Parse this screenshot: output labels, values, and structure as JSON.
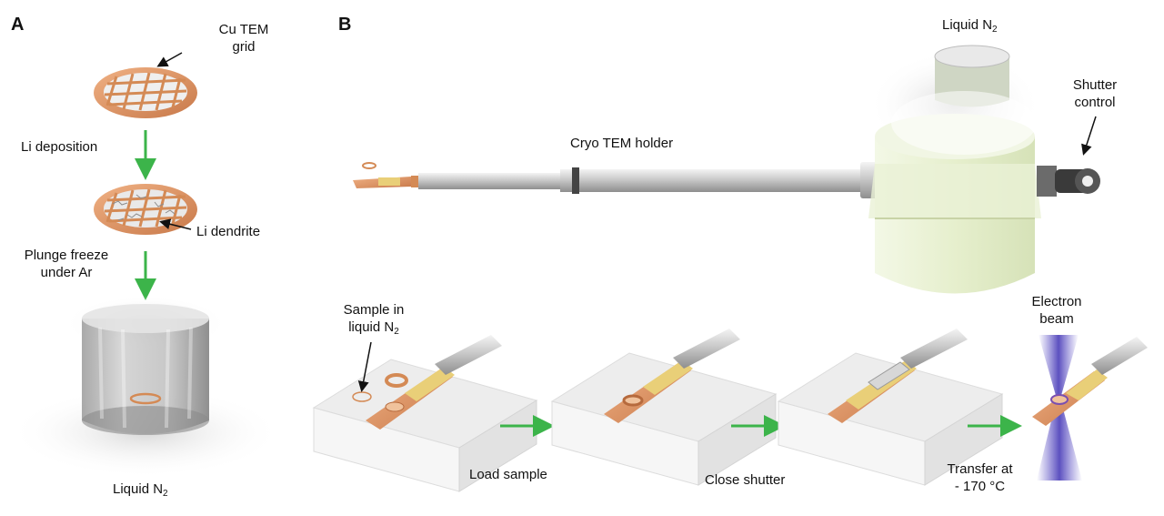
{
  "panels": {
    "a": "A",
    "b": "B"
  },
  "panel_a": {
    "grid_label_1": "Cu TEM",
    "grid_label_2": "grid",
    "step1": "Li deposition",
    "dendrite_label": "Li dendrite",
    "step2_line1": "Plunge freeze",
    "step2_line2": "under Ar",
    "dewar_label": "Liquid N",
    "dewar_label_sub": "2"
  },
  "panel_b": {
    "holder_label": "Cryo TEM holder",
    "liquid_label": "Liquid N",
    "liquid_label_sub": "2",
    "shutter_line1": "Shutter",
    "shutter_line2": "control",
    "sample_line1": "Sample in",
    "sample_line2": "liquid N",
    "sample_line2_sub": "2",
    "step_load": "Load sample",
    "step_close": "Close shutter",
    "step_transfer_line1": "Transfer at",
    "step_transfer_line2": "- 170 °C",
    "beam_line1": "Electron",
    "beam_line2": "beam"
  },
  "colors": {
    "arrow_green": "#3cb44a",
    "copper": "#d9935e",
    "gold": "#e9cf78",
    "frost": "#e8f0d8",
    "beam": "#5a4ec8"
  }
}
